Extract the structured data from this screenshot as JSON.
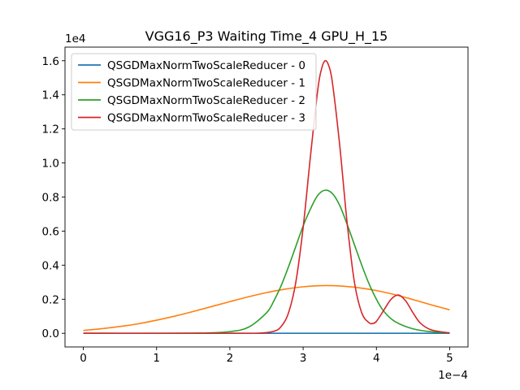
{
  "chart_data": {
    "type": "line",
    "title": "VGG16_P3 Waiting Time_4 GPU_H_15",
    "xlabel": "",
    "ylabel": "",
    "x_offset_label": "1e−4",
    "y_offset_label": "1e4",
    "xlim": [
      -0.25,
      5.25
    ],
    "ylim": [
      -0.08,
      1.68
    ],
    "x_ticks": [
      0,
      1,
      2,
      3,
      4,
      5
    ],
    "x_tick_labels": [
      "0",
      "1",
      "2",
      "3",
      "4",
      "5"
    ],
    "y_ticks": [
      0.0,
      0.2,
      0.4,
      0.6,
      0.8,
      1.0,
      1.2,
      1.4,
      1.6
    ],
    "y_tick_labels": [
      "0.0",
      "0.2",
      "0.4",
      "0.6",
      "0.8",
      "1.0",
      "1.2",
      "1.4",
      "1.6"
    ],
    "grid": false,
    "legend_position": "top-left",
    "series": [
      {
        "name": "QSGDMaxNormTwoScaleReducer - 0",
        "color": "#1f77b4",
        "x": [
          0,
          0.25,
          0.5,
          0.75,
          1.0,
          1.25,
          1.5,
          1.75,
          2.0,
          2.25,
          2.5,
          2.75,
          3.0,
          3.25,
          3.5,
          3.75,
          4.0,
          4.25,
          4.5,
          4.75,
          5.0
        ],
        "y": [
          0,
          0,
          0,
          0,
          0,
          0,
          0,
          0,
          0,
          0,
          0,
          0,
          0,
          0,
          0,
          0,
          0,
          0,
          0,
          0,
          0
        ]
      },
      {
        "name": "QSGDMaxNormTwoScaleReducer - 1",
        "color": "#ff7f0e",
        "x": [
          0,
          0.25,
          0.5,
          0.75,
          1.0,
          1.25,
          1.5,
          1.75,
          2.0,
          2.25,
          2.5,
          2.75,
          3.0,
          3.25,
          3.5,
          3.75,
          4.0,
          4.25,
          4.5,
          4.75,
          5.0
        ],
        "y": [
          0.017,
          0.027,
          0.04,
          0.056,
          0.077,
          0.101,
          0.128,
          0.157,
          0.186,
          0.214,
          0.239,
          0.259,
          0.273,
          0.28,
          0.278,
          0.268,
          0.251,
          0.227,
          0.198,
          0.167,
          0.138
        ]
      },
      {
        "name": "QSGDMaxNormTwoScaleReducer - 2",
        "color": "#2ca02c",
        "x": [
          0,
          1.0,
          1.5,
          1.75,
          2.0,
          2.25,
          2.5,
          2.6,
          2.7,
          2.8,
          2.9,
          3.0,
          3.1,
          3.2,
          3.3,
          3.4,
          3.5,
          3.6,
          3.7,
          3.8,
          3.9,
          4.0,
          4.1,
          4.25,
          4.5,
          4.75,
          5.0
        ],
        "y": [
          0,
          0,
          0.001,
          0.003,
          0.01,
          0.035,
          0.12,
          0.19,
          0.28,
          0.39,
          0.51,
          0.63,
          0.73,
          0.81,
          0.84,
          0.82,
          0.75,
          0.64,
          0.52,
          0.4,
          0.29,
          0.2,
          0.13,
          0.07,
          0.026,
          0.009,
          0.003
        ]
      },
      {
        "name": "QSGDMaxNormTwoScaleReducer - 3",
        "color": "#d62728",
        "x": [
          0,
          2.0,
          2.4,
          2.6,
          2.7,
          2.8,
          2.9,
          3.0,
          3.1,
          3.2,
          3.25,
          3.3,
          3.35,
          3.4,
          3.5,
          3.6,
          3.7,
          3.8,
          3.9,
          3.95,
          4.0,
          4.1,
          4.2,
          4.3,
          4.4,
          4.5,
          4.6,
          4.75,
          5.0
        ],
        "y": [
          0,
          0,
          0.001,
          0.012,
          0.04,
          0.12,
          0.3,
          0.62,
          1.04,
          1.43,
          1.55,
          1.6,
          1.57,
          1.47,
          1.1,
          0.65,
          0.3,
          0.12,
          0.062,
          0.058,
          0.07,
          0.135,
          0.2,
          0.225,
          0.19,
          0.12,
          0.06,
          0.02,
          0.002
        ]
      }
    ]
  }
}
